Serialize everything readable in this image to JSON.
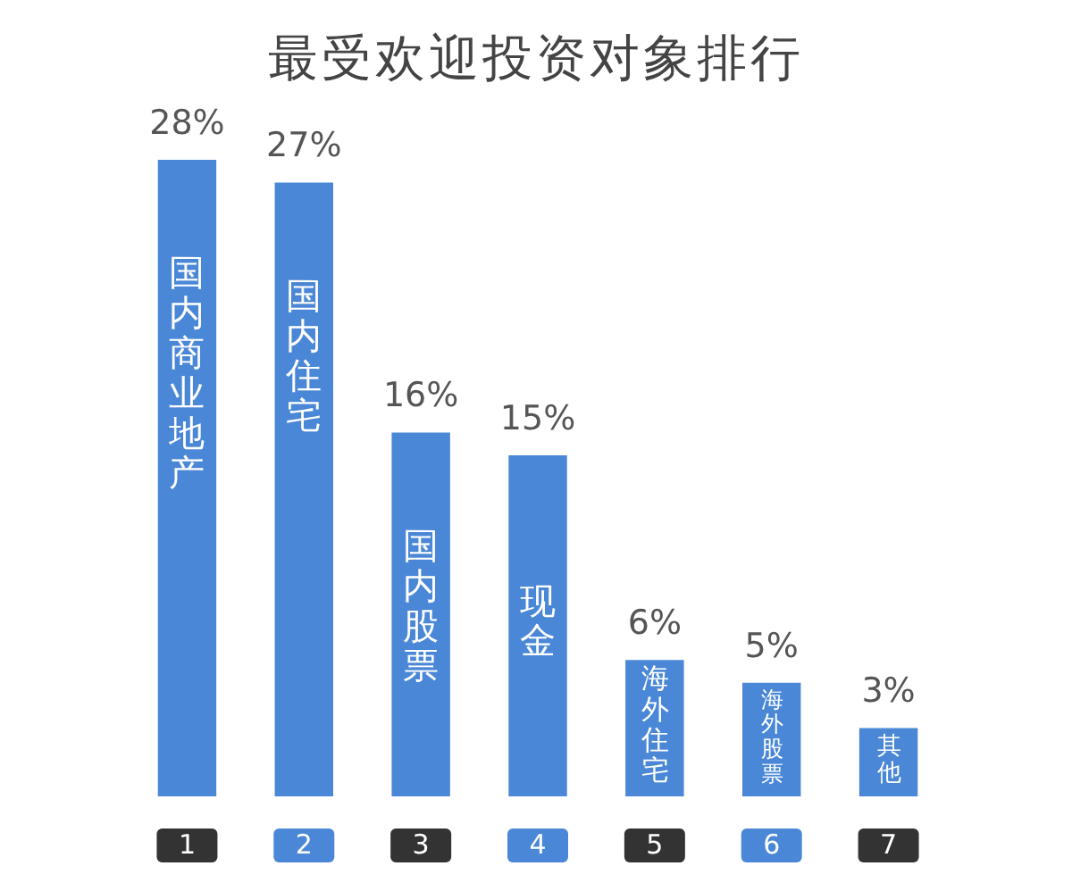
{
  "chart_data": {
    "type": "bar",
    "title": "最受欢迎投资对象排行",
    "categories": [
      "国内商业地产",
      "国内住宅",
      "国内股票",
      "现金",
      "海外住宅",
      "海外股票",
      "其他"
    ],
    "values": [
      28,
      27,
      16,
      15,
      6,
      5,
      3
    ],
    "color": "#4a87d6",
    "value_labels": [
      "28%",
      "27%",
      "16%",
      "15%",
      "6%",
      "5%",
      "3%"
    ],
    "annotations": [
      "1",
      "2",
      "3",
      "4",
      "5",
      "6",
      "7"
    ]
  }
}
